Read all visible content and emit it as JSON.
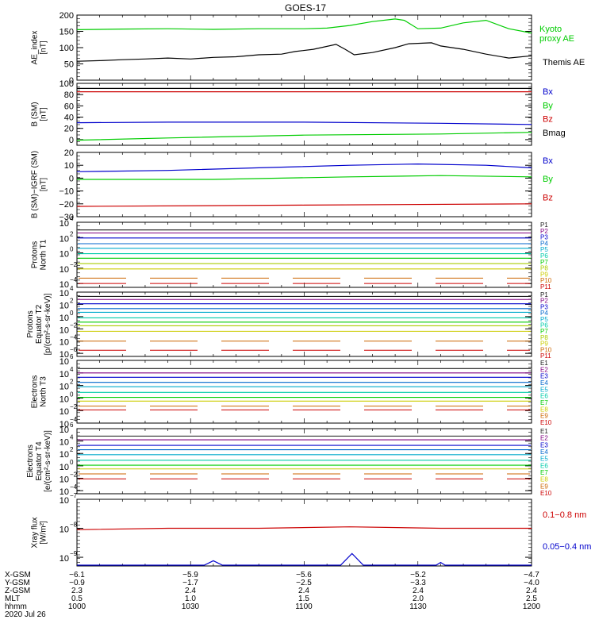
{
  "title": "GOES-17",
  "colors": {
    "black": "#000000",
    "blue": "#0000cc",
    "green": "#00cc00",
    "red": "#cc0000",
    "p": [
      "#1a1a1a",
      "#800080",
      "#0000cc",
      "#0066cc",
      "#00aacc",
      "#00ccaa",
      "#00cc00",
      "#aacc00",
      "#cccc00",
      "#cc6600",
      "#cc0000"
    ],
    "e": [
      "#1a1a1a",
      "#800080",
      "#0000cc",
      "#0066cc",
      "#00aacc",
      "#00ccaa",
      "#00cc00",
      "#cccc00",
      "#cc6600",
      "#cc0000"
    ]
  },
  "chart_data": [
    {
      "type": "line",
      "ylabel": [
        "AE_index",
        "[nT]"
      ],
      "ylim": [
        0,
        200
      ],
      "yticks": [
        "0",
        "50",
        "100",
        "150",
        "200"
      ],
      "yvals": [
        0,
        50,
        100,
        150,
        200
      ],
      "series": [
        {
          "name": "Kyoto\nproxy AE",
          "color": "green",
          "x": [
            0,
            10,
            20,
            30,
            40,
            50,
            55,
            60,
            65,
            70,
            72,
            75,
            80,
            85,
            90,
            95,
            100
          ],
          "y": [
            155,
            157,
            158,
            156,
            158,
            158,
            160,
            168,
            180,
            188,
            184,
            158,
            160,
            176,
            184,
            158,
            145
          ]
        },
        {
          "name": "Themis AE",
          "color": "black",
          "x": [
            0,
            5,
            10,
            15,
            20,
            25,
            30,
            35,
            40,
            45,
            48,
            52,
            57,
            59,
            61,
            65,
            70,
            73,
            78,
            80,
            85,
            90,
            95,
            100
          ],
          "y": [
            58,
            60,
            63,
            65,
            68,
            65,
            70,
            72,
            78,
            80,
            88,
            95,
            110,
            95,
            78,
            85,
            100,
            112,
            115,
            105,
            95,
            80,
            68,
            75
          ]
        }
      ]
    },
    {
      "type": "line",
      "ylabel": [
        "B (SM)",
        "[nT]"
      ],
      "ylim": [
        -10,
        100
      ],
      "yticks": [
        "0",
        "20",
        "40",
        "60",
        "80",
        "100"
      ],
      "yvals": [
        0,
        20,
        40,
        60,
        80,
        100
      ],
      "series": [
        {
          "name": "Bx",
          "color": "blue",
          "x": [
            0,
            20,
            50,
            80,
            100
          ],
          "y": [
            30,
            31,
            31,
            29,
            27
          ]
        },
        {
          "name": "By",
          "color": "green",
          "x": [
            0,
            20,
            50,
            80,
            100
          ],
          "y": [
            -1,
            3,
            8,
            10,
            13
          ]
        },
        {
          "name": "Bz",
          "color": "red",
          "x": [
            0,
            100
          ],
          "y": [
            85,
            85
          ]
        },
        {
          "name": "Bmag",
          "color": "black",
          "x": [
            0,
            100
          ],
          "y": [
            91,
            91
          ]
        }
      ]
    },
    {
      "type": "line",
      "ylabel": [
        "B (SM)−IGRF (SM)",
        "[nT]"
      ],
      "ylim": [
        -30,
        20
      ],
      "yticks": [
        "−30",
        "−20",
        "−10",
        "0",
        "10",
        "20"
      ],
      "yvals": [
        -30,
        -20,
        -10,
        0,
        10,
        20
      ],
      "series": [
        {
          "name": "Bx",
          "color": "blue",
          "x": [
            0,
            20,
            40,
            60,
            75,
            90,
            100
          ],
          "y": [
            5,
            6,
            8,
            10,
            11,
            10,
            8
          ]
        },
        {
          "name": "By",
          "color": "green",
          "x": [
            0,
            30,
            60,
            80,
            100
          ],
          "y": [
            -1,
            -1,
            1,
            2,
            1
          ]
        },
        {
          "name": "Bz",
          "color": "red",
          "x": [
            0,
            50,
            100
          ],
          "y": [
            -22,
            -21,
            -20
          ]
        }
      ]
    },
    {
      "type": "line",
      "log": true,
      "ylabel": [
        "Protons",
        "North T1"
      ],
      "ylim": [
        -4.5,
        4
      ],
      "yticks": [
        {
          "b": "10",
          "e": "4",
          "v": 4
        },
        {
          "b": "10",
          "e": "2",
          "v": 2
        },
        {
          "b": "10",
          "e": "0",
          "v": 0
        },
        {
          "b": "10",
          "e": "−2",
          "v": -2
        },
        {
          "b": "10",
          "e": "−4",
          "v": -4
        }
      ],
      "labels": [
        "P1",
        "P2",
        "P3",
        "P4",
        "P5",
        "P6",
        "P7",
        "P8",
        "P9",
        "P10",
        "P11"
      ],
      "levels": [
        3.0,
        2.6,
        1.95,
        1.2,
        0.6,
        -0.1,
        -0.7,
        -1.4,
        -2.1,
        -3.3,
        -4.0
      ]
    },
    {
      "type": "line",
      "log": true,
      "ylabel": [
        "Protons",
        "Equator T2",
        "[p/(cm²-s-sr-keV)]"
      ],
      "ylim": [
        -6.5,
        4
      ],
      "yticks": [
        {
          "b": "10",
          "e": "4",
          "v": 4
        },
        {
          "b": "10",
          "e": "2",
          "v": 2
        },
        {
          "b": "10",
          "e": "0",
          "v": 0
        },
        {
          "b": "10",
          "e": "−2",
          "v": -2
        },
        {
          "b": "10",
          "e": "−4",
          "v": -4
        },
        {
          "b": "10",
          "e": "−6",
          "v": -6
        }
      ],
      "labels": [
        "P1",
        "P2",
        "P3",
        "P4",
        "P5",
        "P6",
        "P7",
        "P8",
        "P9",
        "P10",
        "P11"
      ],
      "levels": [
        3.3,
        2.8,
        2.1,
        1.3,
        0.7,
        -0.2,
        -0.9,
        -1.5,
        -2.4,
        -4.0,
        -5.5
      ]
    },
    {
      "type": "line",
      "log": true,
      "ylabel": [
        "Electrons",
        "North T3"
      ],
      "ylim": [
        -4,
        6
      ],
      "yticks": [
        {
          "b": "10",
          "e": "6",
          "v": 6
        },
        {
          "b": "10",
          "e": "4",
          "v": 4
        },
        {
          "b": "10",
          "e": "2",
          "v": 2
        },
        {
          "b": "10",
          "e": "0",
          "v": 0
        },
        {
          "b": "10",
          "e": "−2",
          "v": -2
        },
        {
          "b": "10",
          "e": "−4",
          "v": -4
        }
      ],
      "labels": [
        "E1",
        "E2",
        "E3",
        "E4",
        "E5",
        "E6",
        "E7",
        "E8",
        "E9",
        "E10"
      ],
      "levels": [
        4.7,
        4.0,
        3.3,
        2.5,
        1.8,
        0.9,
        0.1,
        -0.5,
        -1.3,
        -1.9
      ]
    },
    {
      "type": "line",
      "log": true,
      "ylabel": [
        "Electrons",
        "Equator T4",
        "[e/(cm²-s-sr-keV)]"
      ],
      "ylim": [
        -4.5,
        6
      ],
      "yticks": [
        {
          "b": "10",
          "e": "6",
          "v": 6
        },
        {
          "b": "10",
          "e": "4",
          "v": 4
        },
        {
          "b": "10",
          "e": "2",
          "v": 2
        },
        {
          "b": "10",
          "e": "0",
          "v": 0
        },
        {
          "b": "10",
          "e": "−2",
          "v": -2
        },
        {
          "b": "10",
          "e": "−4",
          "v": -4
        }
      ],
      "labels": [
        "E1",
        "E2",
        "E3",
        "E4",
        "E5",
        "E6",
        "E7",
        "E8",
        "E9",
        "E10"
      ],
      "levels": [
        4.8,
        4.2,
        3.3,
        2.6,
        1.8,
        0.9,
        0.1,
        -0.5,
        -1.3,
        -2.1
      ]
    },
    {
      "type": "line",
      "log": true,
      "ylabel": [
        "Xray flux",
        "[W/m²]"
      ],
      "ylim": [
        -9.3,
        -7
      ],
      "yticks": [
        {
          "b": "10",
          "e": "−7",
          "v": -7
        },
        {
          "b": "10",
          "e": "−8",
          "v": -8
        },
        {
          "b": "10",
          "e": "−9",
          "v": -9
        }
      ],
      "series": [
        {
          "name": "0.1−0.8 nm",
          "color": "red",
          "x": [
            0,
            20,
            40,
            60,
            80,
            100
          ],
          "y": [
            -8.05,
            -8.0,
            -8.0,
            -7.95,
            -8.0,
            -8.0
          ]
        },
        {
          "name": "0.05−0.4 nm",
          "color": "blue",
          "x": [
            0,
            28,
            30,
            32,
            58,
            60.5,
            63,
            79,
            80,
            81,
            100
          ],
          "y": [
            -9.4,
            -9.4,
            -9.12,
            -9.4,
            -9.4,
            -8.87,
            -9.4,
            -9.4,
            -9.18,
            -9.4,
            -9.4
          ]
        }
      ]
    }
  ],
  "xaxis": {
    "rows": [
      {
        "label": "X-GSM",
        "values": [
          "−6.1",
          "−5.9",
          "−5.6",
          "−5.2",
          "−4.7"
        ]
      },
      {
        "label": "Y-GSM",
        "values": [
          "−0.9",
          "−1.7",
          "−2.5",
          "−3.3",
          "−4.0"
        ]
      },
      {
        "label": "Z-GSM",
        "values": [
          "2.3",
          "2.4",
          "2.4",
          "2.4",
          "2.4"
        ]
      },
      {
        "label": "MLT",
        "values": [
          "0.5",
          "1.0",
          "1.5",
          "2.0",
          "2.5"
        ]
      },
      {
        "label": "hhmm",
        "values": [
          "1000",
          "1030",
          "1100",
          "1130",
          "1200"
        ]
      }
    ],
    "date": "2020 Jul 26"
  }
}
